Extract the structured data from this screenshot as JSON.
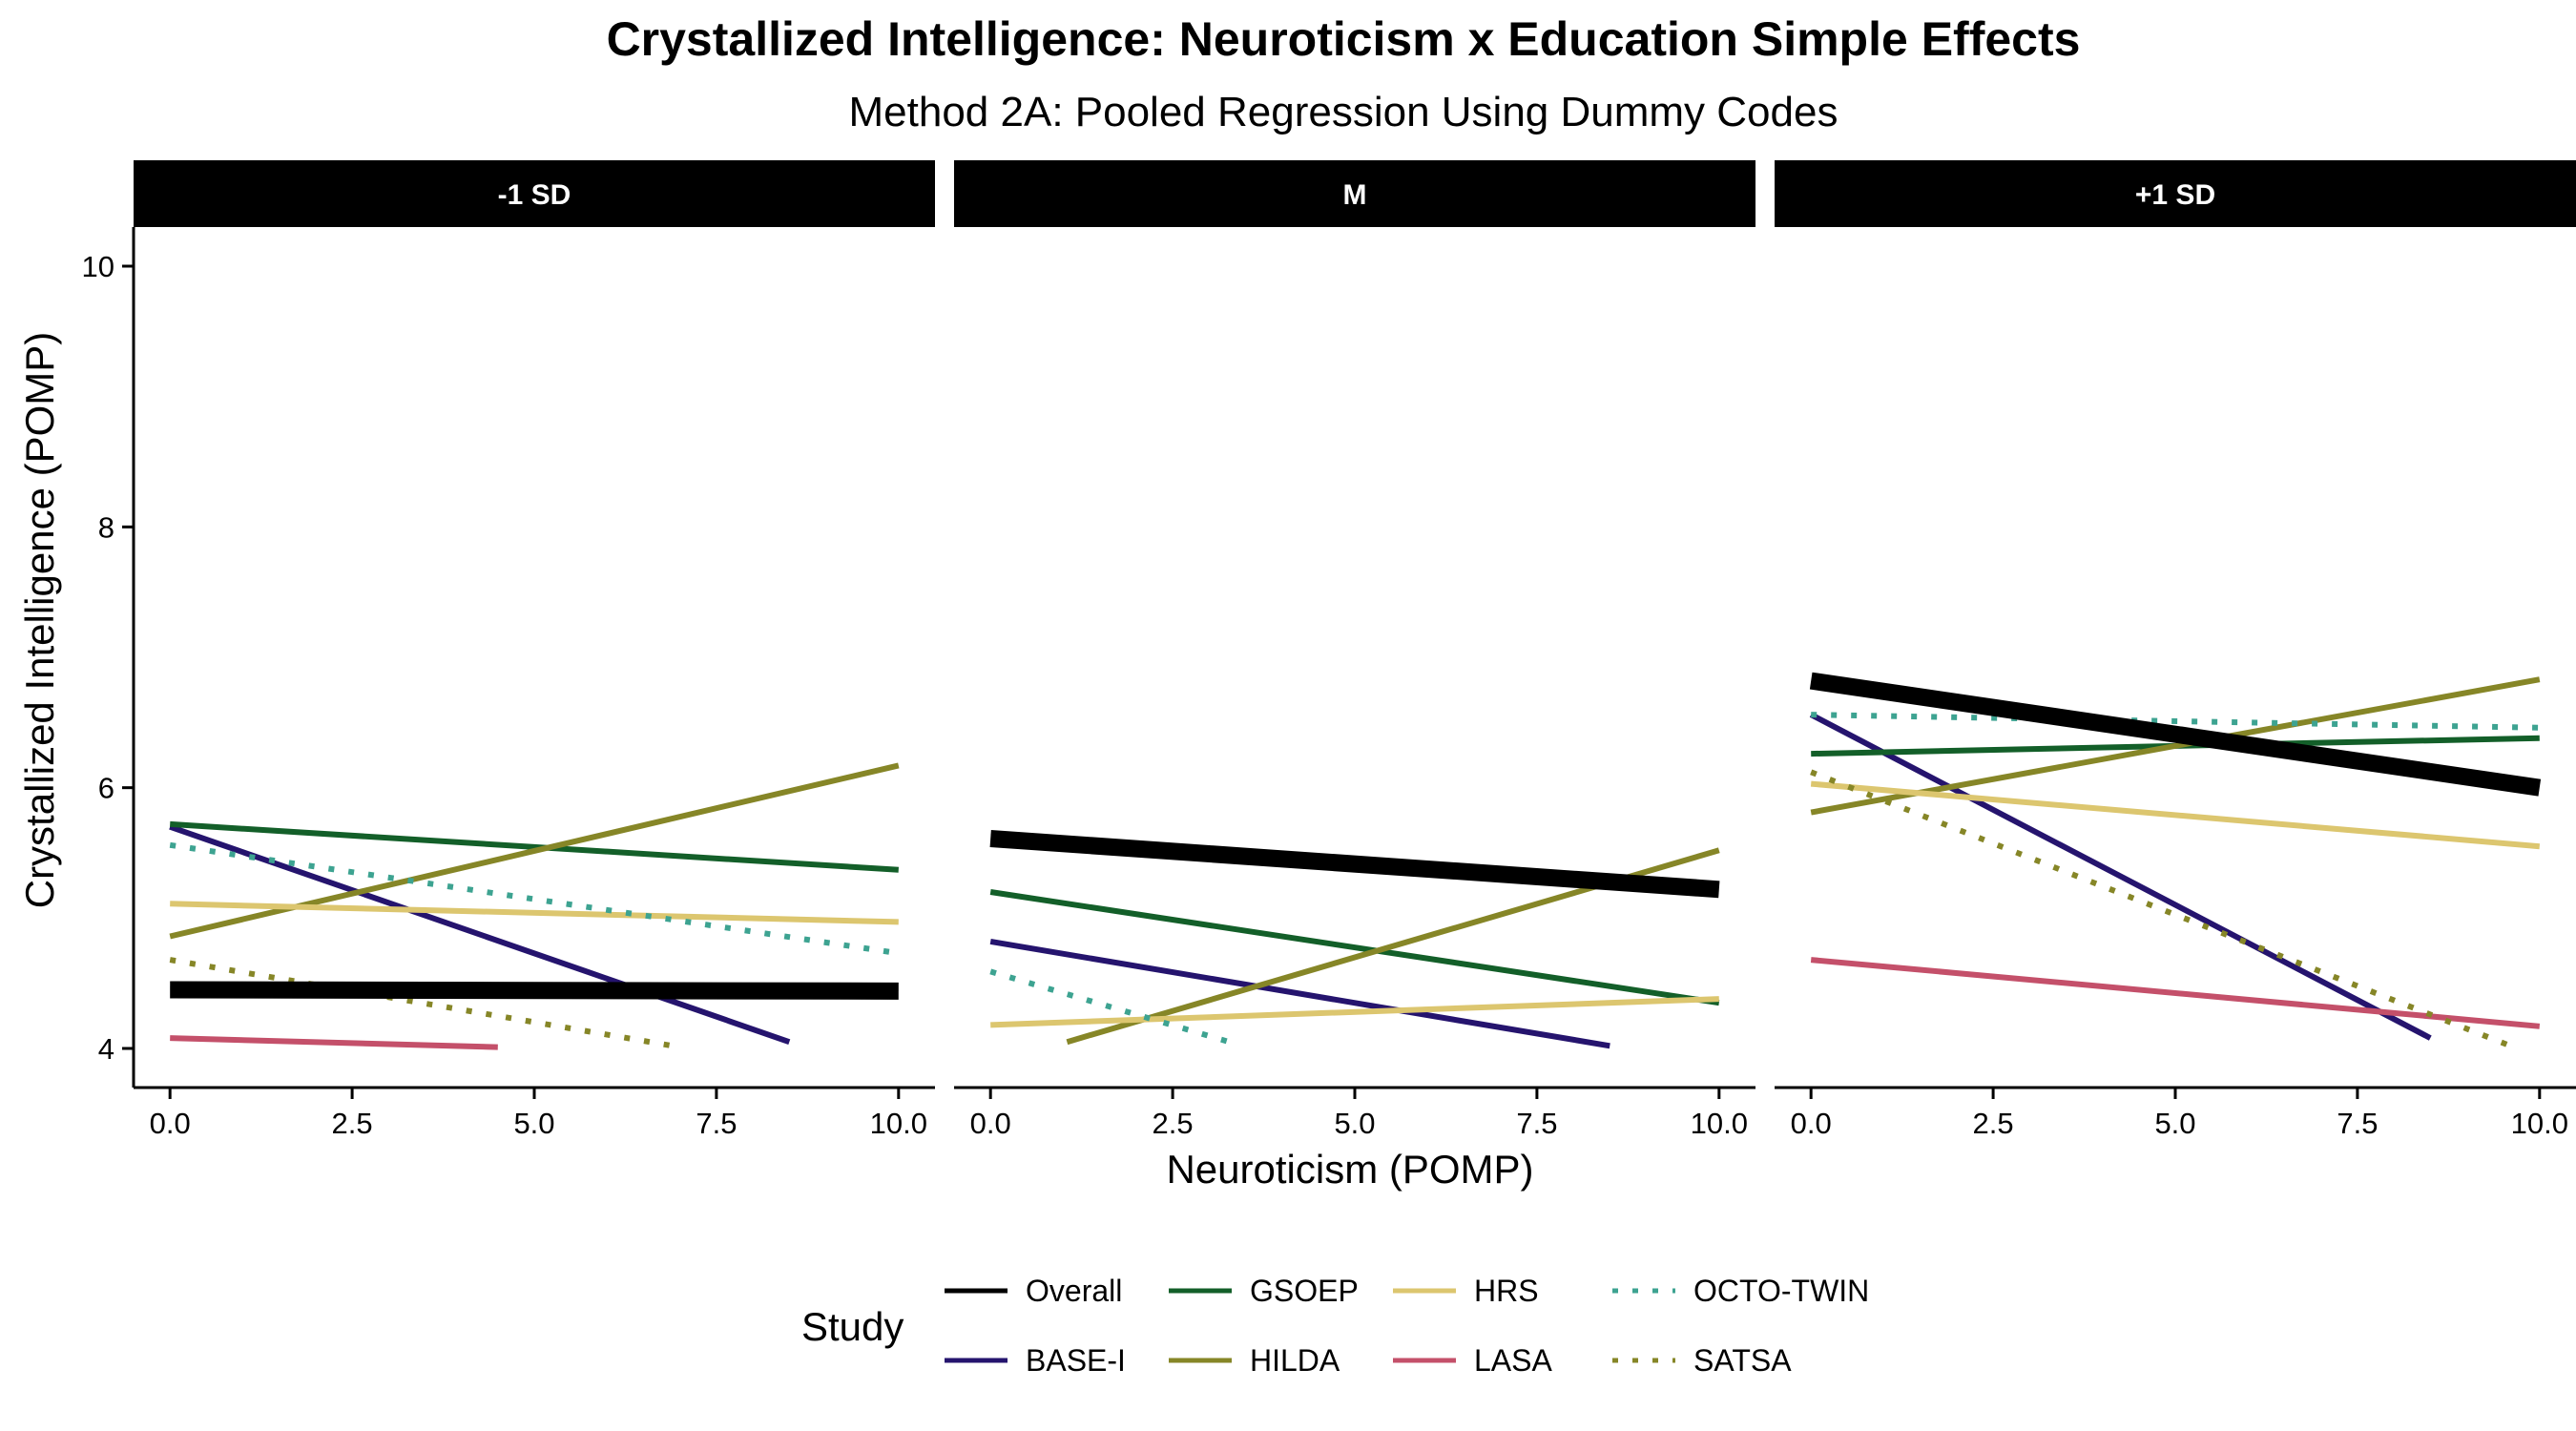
{
  "chart_data": {
    "type": "line",
    "title": "Crystallized Intelligence: Neuroticism x Education Simple Effects",
    "subtitle": "Method 2A: Pooled Regression Using Dummy Codes",
    "xlabel": "Neuroticism (POMP)",
    "ylabel": "Crystallized Intelligence (POMP)",
    "xlim": [
      -0.5,
      10.5
    ],
    "ylim": [
      3.7,
      10.3
    ],
    "xticks": [
      0,
      2.5,
      5,
      7.5,
      10
    ],
    "xtick_labels": [
      "0.0",
      "2.5",
      "5.0",
      "7.5",
      "10.0"
    ],
    "yticks": [
      4,
      6,
      8,
      10
    ],
    "ytick_labels": [
      "4",
      "6",
      "8",
      "10"
    ],
    "grid": false,
    "legend": {
      "title": "Study",
      "position": "bottom",
      "entries": [
        "Overall",
        "BASE-I",
        "GSOEP",
        "HILDA",
        "HRS",
        "LASA",
        "OCTO-TWIN",
        "SATSA"
      ]
    },
    "series_styles": {
      "Overall": {
        "color": "#000000",
        "dash": "solid",
        "width": "thick"
      },
      "BASE-I": {
        "color": "#25146e",
        "dash": "solid",
        "width": "normal"
      },
      "GSOEP": {
        "color": "#135f29",
        "dash": "solid",
        "width": "normal"
      },
      "HILDA": {
        "color": "#868627",
        "dash": "solid",
        "width": "normal"
      },
      "HRS": {
        "color": "#dcc66f",
        "dash": "solid",
        "width": "normal"
      },
      "LASA": {
        "color": "#c4506a",
        "dash": "solid",
        "width": "normal"
      },
      "OCTO-TWIN": {
        "color": "#3da391",
        "dash": "dotted",
        "width": "normal"
      },
      "SATSA": {
        "color": "#868627",
        "dash": "dotted",
        "width": "normal"
      }
    },
    "panels": [
      {
        "label": "-1 SD",
        "series": [
          {
            "name": "Overall",
            "x": [
              0,
              10
            ],
            "y": [
              4.45,
              4.44
            ]
          },
          {
            "name": "BASE-I",
            "x": [
              0,
              8.5
            ],
            "y": [
              5.7,
              4.05
            ]
          },
          {
            "name": "GSOEP",
            "x": [
              0,
              10
            ],
            "y": [
              5.72,
              5.37
            ]
          },
          {
            "name": "HILDA",
            "x": [
              0,
              10
            ],
            "y": [
              4.86,
              6.17
            ]
          },
          {
            "name": "HRS",
            "x": [
              0,
              10
            ],
            "y": [
              5.11,
              4.97
            ]
          },
          {
            "name": "LASA",
            "x": [
              0,
              4.5
            ],
            "y": [
              4.08,
              4.01
            ]
          },
          {
            "name": "OCTO-TWIN",
            "x": [
              0,
              10
            ],
            "y": [
              5.56,
              4.73
            ]
          },
          {
            "name": "SATSA",
            "x": [
              0,
              6.9
            ],
            "y": [
              4.68,
              4.02
            ]
          }
        ]
      },
      {
        "label": "M",
        "series": [
          {
            "name": "Overall",
            "x": [
              0,
              10
            ],
            "y": [
              5.61,
              5.22
            ]
          },
          {
            "name": "BASE-I",
            "x": [
              0,
              8.5
            ],
            "y": [
              4.82,
              4.02
            ]
          },
          {
            "name": "GSOEP",
            "x": [
              0,
              10
            ],
            "y": [
              5.2,
              4.35
            ]
          },
          {
            "name": "HILDA",
            "x": [
              1.05,
              10
            ],
            "y": [
              4.05,
              5.52
            ]
          },
          {
            "name": "HRS",
            "x": [
              0,
              10
            ],
            "y": [
              4.18,
              4.38
            ]
          },
          {
            "name": "OCTO-TWIN",
            "x": [
              0,
              3.4
            ],
            "y": [
              4.59,
              4.03
            ]
          }
        ]
      },
      {
        "label": "+1 SD",
        "series": [
          {
            "name": "Overall",
            "x": [
              0,
              10
            ],
            "y": [
              6.82,
              6.0
            ]
          },
          {
            "name": "BASE-I",
            "x": [
              0,
              8.5
            ],
            "y": [
              6.56,
              4.08
            ]
          },
          {
            "name": "GSOEP",
            "x": [
              0,
              10
            ],
            "y": [
              6.26,
              6.38
            ]
          },
          {
            "name": "HILDA",
            "x": [
              0,
              10
            ],
            "y": [
              5.81,
              6.83
            ]
          },
          {
            "name": "HRS",
            "x": [
              0,
              10
            ],
            "y": [
              6.03,
              5.55
            ]
          },
          {
            "name": "LASA",
            "x": [
              0,
              10
            ],
            "y": [
              4.68,
              4.17
            ]
          },
          {
            "name": "OCTO-TWIN",
            "x": [
              0,
              10
            ],
            "y": [
              6.56,
              6.46
            ]
          },
          {
            "name": "SATSA",
            "x": [
              0,
              9.6
            ],
            "y": [
              6.12,
              4.02
            ]
          }
        ]
      }
    ]
  }
}
